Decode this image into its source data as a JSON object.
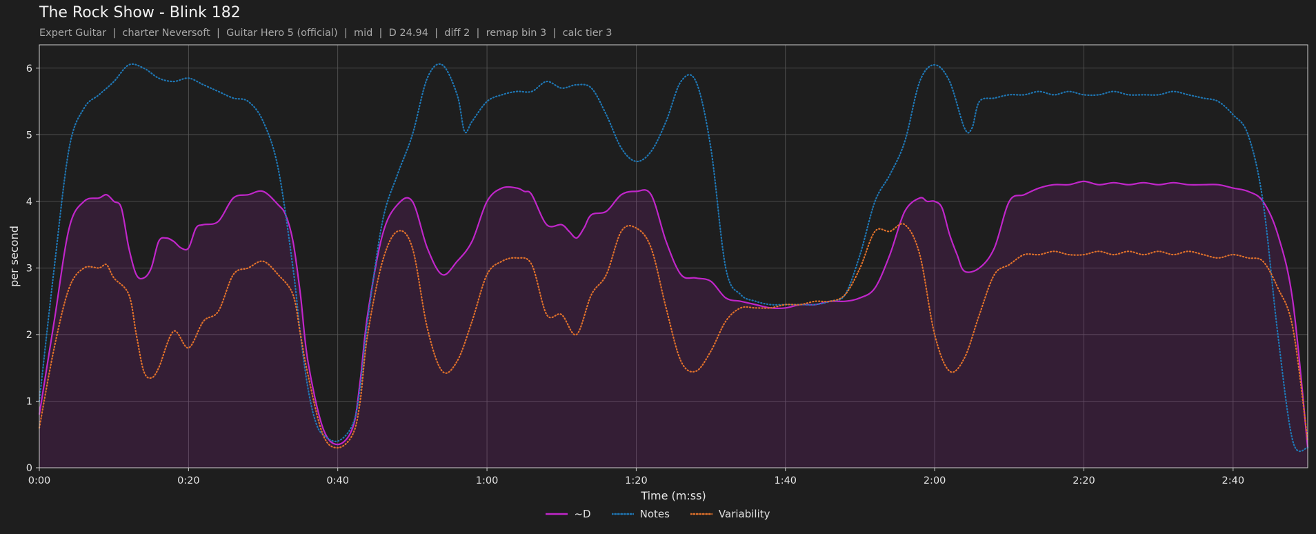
{
  "title": "The Rock Show - Blink 182",
  "subtitle": "Expert Guitar  |  charter Neversoft  |  Guitar Hero 5 (official)  |  mid  |  D 24.94  |  diff 2  |  remap bin 3  |  calc tier 3",
  "chart_data": {
    "type": "line",
    "title": "The Rock Show - Blink 182",
    "xlabel": "Time (m:ss)",
    "ylabel": "per second",
    "xlim": [
      0,
      170
    ],
    "ylim": [
      0,
      6.35
    ],
    "x_ticks": [
      0,
      20,
      40,
      60,
      80,
      100,
      120,
      140,
      160
    ],
    "x_tick_labels": [
      "0:00",
      "0:20",
      "0:40",
      "1:00",
      "1:20",
      "1:40",
      "2:00",
      "2:20",
      "2:40"
    ],
    "y_ticks": [
      0,
      1,
      2,
      3,
      4,
      5,
      6
    ],
    "y_tick_labels": [
      "0",
      "1",
      "2",
      "3",
      "4",
      "5",
      "6"
    ],
    "grid": true,
    "legend_position": "bottom-center",
    "series": [
      {
        "name": "~D",
        "color": "#c026c9",
        "style": "solid",
        "filled": true,
        "x": [
          0,
          2,
          4,
          6,
          8,
          9,
          10,
          11,
          12,
          13,
          14,
          15,
          16,
          17,
          18,
          19,
          20,
          21,
          22,
          24,
          26,
          28,
          30,
          32,
          33,
          34,
          35,
          36,
          38,
          40,
          42,
          43,
          44,
          46,
          48,
          50,
          52,
          54,
          56,
          58,
          60,
          62,
          64,
          65,
          66,
          68,
          70,
          71,
          72,
          73,
          74,
          76,
          78,
          80,
          82,
          84,
          86,
          88,
          90,
          92,
          94,
          96,
          98,
          100,
          102,
          104,
          106,
          108,
          110,
          112,
          114,
          116,
          118,
          119,
          120,
          121,
          122,
          123,
          124,
          126,
          128,
          130,
          132,
          134,
          136,
          138,
          140,
          142,
          144,
          146,
          148,
          150,
          152,
          154,
          156,
          158,
          160,
          162,
          164,
          166,
          168,
          170
        ],
        "y": [
          0.8,
          2.2,
          3.6,
          4.0,
          4.05,
          4.1,
          4.0,
          3.9,
          3.3,
          2.9,
          2.85,
          3.0,
          3.4,
          3.45,
          3.4,
          3.3,
          3.3,
          3.6,
          3.65,
          3.7,
          4.05,
          4.1,
          4.15,
          3.95,
          3.8,
          3.4,
          2.6,
          1.6,
          0.6,
          0.35,
          0.6,
          1.3,
          2.3,
          3.5,
          3.95,
          4.0,
          3.3,
          2.9,
          3.1,
          3.4,
          4.0,
          4.2,
          4.2,
          4.15,
          4.1,
          3.65,
          3.65,
          3.55,
          3.45,
          3.6,
          3.8,
          3.85,
          4.1,
          4.15,
          4.1,
          3.4,
          2.9,
          2.85,
          2.8,
          2.55,
          2.5,
          2.45,
          2.4,
          2.4,
          2.45,
          2.45,
          2.5,
          2.5,
          2.55,
          2.7,
          3.2,
          3.85,
          4.05,
          4.0,
          4.0,
          3.9,
          3.5,
          3.2,
          2.95,
          3.0,
          3.3,
          4.0,
          4.1,
          4.2,
          4.25,
          4.25,
          4.3,
          4.25,
          4.28,
          4.25,
          4.28,
          4.25,
          4.28,
          4.25,
          4.25,
          4.25,
          4.2,
          4.15,
          4.0,
          3.5,
          2.5,
          0.3
        ]
      },
      {
        "name": "Notes",
        "color": "#1f77b4",
        "style": "dotted",
        "filled": false,
        "x": [
          0,
          2,
          4,
          6,
          8,
          10,
          12,
          14,
          16,
          18,
          20,
          22,
          24,
          26,
          28,
          30,
          32,
          34,
          35,
          36,
          37,
          38,
          40,
          42,
          43,
          44,
          46,
          48,
          50,
          52,
          54,
          56,
          57,
          58,
          60,
          62,
          64,
          66,
          68,
          70,
          72,
          74,
          76,
          78,
          80,
          82,
          84,
          86,
          88,
          90,
          92,
          94,
          96,
          98,
          100,
          102,
          104,
          106,
          108,
          110,
          112,
          114,
          116,
          118,
          120,
          122,
          124,
          125,
          126,
          128,
          130,
          132,
          134,
          136,
          138,
          140,
          142,
          144,
          146,
          148,
          150,
          152,
          154,
          156,
          158,
          160,
          162,
          164,
          166,
          168,
          170
        ],
        "y": [
          1.0,
          3.0,
          4.8,
          5.4,
          5.6,
          5.8,
          6.05,
          6.0,
          5.85,
          5.8,
          5.85,
          5.75,
          5.65,
          5.55,
          5.5,
          5.2,
          4.5,
          3.0,
          2.0,
          1.2,
          0.7,
          0.5,
          0.4,
          0.65,
          1.2,
          2.2,
          3.7,
          4.4,
          5.0,
          5.85,
          6.05,
          5.6,
          5.05,
          5.2,
          5.5,
          5.6,
          5.65,
          5.65,
          5.8,
          5.7,
          5.75,
          5.7,
          5.3,
          4.8,
          4.6,
          4.75,
          5.2,
          5.8,
          5.8,
          4.8,
          3.0,
          2.6,
          2.5,
          2.45,
          2.45,
          2.45,
          2.45,
          2.5,
          2.6,
          3.2,
          4.0,
          4.4,
          4.9,
          5.8,
          6.05,
          5.8,
          5.1,
          5.1,
          5.5,
          5.55,
          5.6,
          5.6,
          5.65,
          5.6,
          5.65,
          5.6,
          5.6,
          5.65,
          5.6,
          5.6,
          5.6,
          5.65,
          5.6,
          5.55,
          5.5,
          5.3,
          5.0,
          4.0,
          2.0,
          0.4,
          0.3
        ]
      },
      {
        "name": "Variability",
        "color": "#e0712b",
        "style": "dotted",
        "filled": false,
        "x": [
          0,
          2,
          4,
          6,
          8,
          9,
          10,
          12,
          13,
          14,
          15,
          16,
          18,
          20,
          22,
          24,
          26,
          28,
          30,
          32,
          34,
          35,
          36,
          38,
          40,
          42,
          43,
          44,
          46,
          48,
          50,
          52,
          54,
          56,
          58,
          60,
          62,
          64,
          66,
          68,
          70,
          72,
          74,
          76,
          78,
          80,
          82,
          84,
          86,
          88,
          90,
          92,
          94,
          96,
          98,
          100,
          102,
          104,
          106,
          108,
          110,
          112,
          114,
          116,
          118,
          120,
          122,
          124,
          126,
          128,
          130,
          132,
          134,
          136,
          138,
          140,
          142,
          144,
          146,
          148,
          150,
          152,
          154,
          156,
          158,
          160,
          162,
          164,
          166,
          168,
          170
        ],
        "y": [
          0.6,
          1.8,
          2.7,
          3.0,
          3.0,
          3.05,
          2.85,
          2.6,
          2.0,
          1.45,
          1.35,
          1.5,
          2.05,
          1.8,
          2.2,
          2.35,
          2.9,
          3.0,
          3.1,
          2.9,
          2.6,
          2.0,
          1.4,
          0.5,
          0.3,
          0.5,
          1.0,
          2.0,
          3.1,
          3.55,
          3.3,
          2.1,
          1.45,
          1.6,
          2.2,
          2.9,
          3.1,
          3.15,
          3.05,
          2.3,
          2.3,
          2.0,
          2.6,
          2.9,
          3.55,
          3.6,
          3.3,
          2.4,
          1.6,
          1.45,
          1.75,
          2.2,
          2.4,
          2.4,
          2.4,
          2.45,
          2.45,
          2.5,
          2.5,
          2.6,
          3.0,
          3.55,
          3.55,
          3.65,
          3.2,
          2.0,
          1.45,
          1.65,
          2.3,
          2.9,
          3.05,
          3.2,
          3.2,
          3.25,
          3.2,
          3.2,
          3.25,
          3.2,
          3.25,
          3.2,
          3.25,
          3.2,
          3.25,
          3.2,
          3.15,
          3.2,
          3.15,
          3.1,
          2.7,
          2.1,
          0.4
        ]
      }
    ]
  }
}
